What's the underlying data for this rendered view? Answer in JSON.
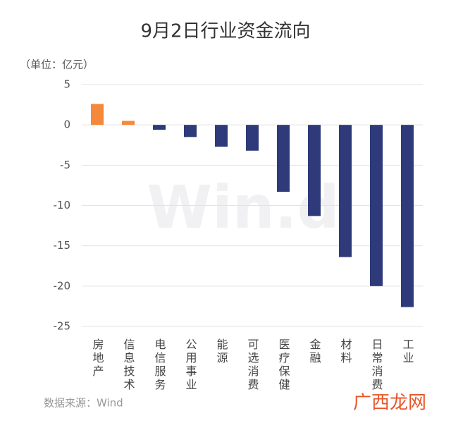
{
  "chart_data": {
    "type": "bar",
    "title": "9月2日行业资金流向",
    "unit_label": "（单位：亿元）",
    "categories": [
      "房地产",
      "信息技术",
      "电信服务",
      "公用事业",
      "能源",
      "可选消费",
      "医疗保健",
      "金融",
      "材料",
      "日常消费",
      "工业"
    ],
    "values": [
      2.6,
      0.5,
      -0.6,
      -1.5,
      -2.7,
      -3.2,
      -8.3,
      -11.3,
      -16.4,
      -20.0,
      -22.6
    ],
    "colors": [
      "#f5883a",
      "#f5883a",
      "#2f3a7a",
      "#2f3a7a",
      "#2f3a7a",
      "#2f3a7a",
      "#2f3a7a",
      "#2f3a7a",
      "#2f3a7a",
      "#2f3a7a",
      "#2f3a7a"
    ],
    "ylim": [
      -25,
      5
    ],
    "yticks": [
      5,
      0,
      -5,
      -10,
      -15,
      -20,
      -25
    ],
    "grid": true,
    "source": "数据来源：Wind",
    "background_mark": "Win.d",
    "watermark": "广西龙网"
  }
}
